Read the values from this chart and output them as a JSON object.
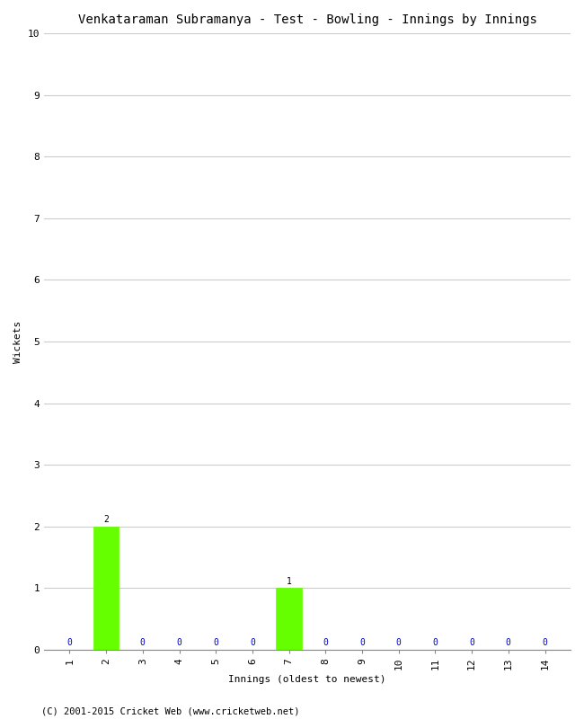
{
  "title": "Venkataraman Subramanya - Test - Bowling - Innings by Innings",
  "xlabel": "Innings (oldest to newest)",
  "ylabel": "Wickets",
  "innings": [
    1,
    2,
    3,
    4,
    5,
    6,
    7,
    8,
    9,
    10,
    11,
    12,
    13,
    14
  ],
  "wickets": [
    0,
    2,
    0,
    0,
    0,
    0,
    1,
    0,
    0,
    0,
    0,
    0,
    0,
    0
  ],
  "bar_color": "#66ff00",
  "zero_color": "#0000cc",
  "ylim": [
    0,
    10
  ],
  "yticks": [
    0,
    1,
    2,
    3,
    4,
    5,
    6,
    7,
    8,
    9,
    10
  ],
  "xticks": [
    1,
    2,
    3,
    4,
    5,
    6,
    7,
    8,
    9,
    10,
    11,
    12,
    13,
    14
  ],
  "background_color": "#ffffff",
  "grid_color": "#cccccc",
  "footer": "(C) 2001-2015 Cricket Web (www.cricketweb.net)",
  "title_fontsize": 10,
  "label_fontsize": 8,
  "tick_fontsize": 8,
  "footer_fontsize": 7.5,
  "annotation_fontsize": 7,
  "bar_width": 0.7
}
